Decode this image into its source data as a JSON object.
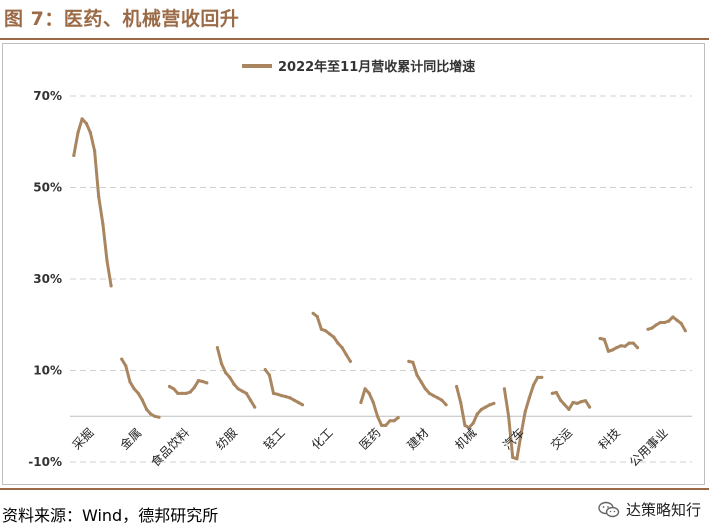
{
  "header": {
    "title": "图 7：医药、机械营收回升"
  },
  "footer": {
    "source": "资料来源：Wind，德邦研究所",
    "watermark": "达策略知行"
  },
  "colors": {
    "accent": "#9B6B47",
    "series": "#A98660",
    "grid": "#d0d0d0"
  },
  "icons": {
    "watermark": "wechat-icon"
  },
  "chart_data": {
    "type": "line",
    "legend": {
      "label": "2022年至11月营收累计同比增速",
      "position": "top"
    },
    "y_axis": {
      "min": -10,
      "max": 70,
      "ticks": [
        -10,
        10,
        30,
        50,
        70
      ],
      "tick_labels": [
        "-10%",
        "10%",
        "30%",
        "50%",
        "70%"
      ]
    },
    "grid": true,
    "categories": [
      "采掘",
      "金属",
      "食品饮料",
      "纺服",
      "轻工",
      "化工",
      "医药",
      "建材",
      "机械",
      "汽车",
      "交运",
      "科技",
      "公用事业"
    ],
    "segments": [
      {
        "category": "采掘",
        "values": [
          57.0,
          62.0,
          65.0,
          64.0,
          62.0,
          58.0,
          48.0,
          42.0,
          34.0,
          28.5
        ]
      },
      {
        "category": "金属",
        "values": [
          12.5,
          11.0,
          7.5,
          6.0,
          5.0,
          3.5,
          1.5,
          0.5,
          0.0,
          -0.2
        ]
      },
      {
        "category": "食品饮料",
        "values": [
          6.5,
          6.0,
          5.0,
          5.0,
          5.0,
          5.3,
          6.3,
          7.8,
          7.6,
          7.3
        ]
      },
      {
        "category": "纺服",
        "values": [
          15.0,
          11.5,
          9.5,
          8.5,
          7.0,
          6.0,
          5.5,
          5.0,
          3.5,
          2.0
        ]
      },
      {
        "category": "轻工",
        "values": [
          10.2,
          9.0,
          5.0,
          4.8,
          4.5,
          4.3,
          4.0,
          3.5,
          3.0,
          2.5
        ]
      },
      {
        "category": "化工",
        "values": [
          22.5,
          21.8,
          19.0,
          18.7,
          18.0,
          17.3,
          16.0,
          15.0,
          13.5,
          12.0
        ]
      },
      {
        "category": "医药",
        "values": [
          3.0,
          6.0,
          5.0,
          3.0,
          0.0,
          -2.0,
          -2.0,
          -1.0,
          -1.0,
          -0.3
        ]
      },
      {
        "category": "建材",
        "values": [
          12.0,
          11.8,
          9.0,
          7.5,
          6.0,
          5.0,
          4.5,
          4.0,
          3.5,
          2.5
        ]
      },
      {
        "category": "机械",
        "values": [
          6.5,
          3.0,
          -2.0,
          -2.5,
          -1.5,
          0.5,
          1.5,
          2.0,
          2.5,
          2.8
        ]
      },
      {
        "category": "汽车",
        "values": [
          6.0,
          0.0,
          -9.0,
          -9.3,
          -4.0,
          1.0,
          4.0,
          6.8,
          8.5,
          8.5
        ]
      },
      {
        "category": "交运",
        "values": [
          5.0,
          5.2,
          3.5,
          2.5,
          1.5,
          3.0,
          2.8,
          3.2,
          3.4,
          2.0
        ]
      },
      {
        "category": "科技",
        "values": [
          17.0,
          16.8,
          14.2,
          14.5,
          15.0,
          15.4,
          15.3,
          16.0,
          16.0,
          15.0
        ]
      },
      {
        "category": "公用事业",
        "values": [
          19.0,
          19.3,
          20.0,
          20.5,
          20.5,
          20.8,
          21.7,
          21.0,
          20.3,
          18.7
        ]
      }
    ]
  }
}
